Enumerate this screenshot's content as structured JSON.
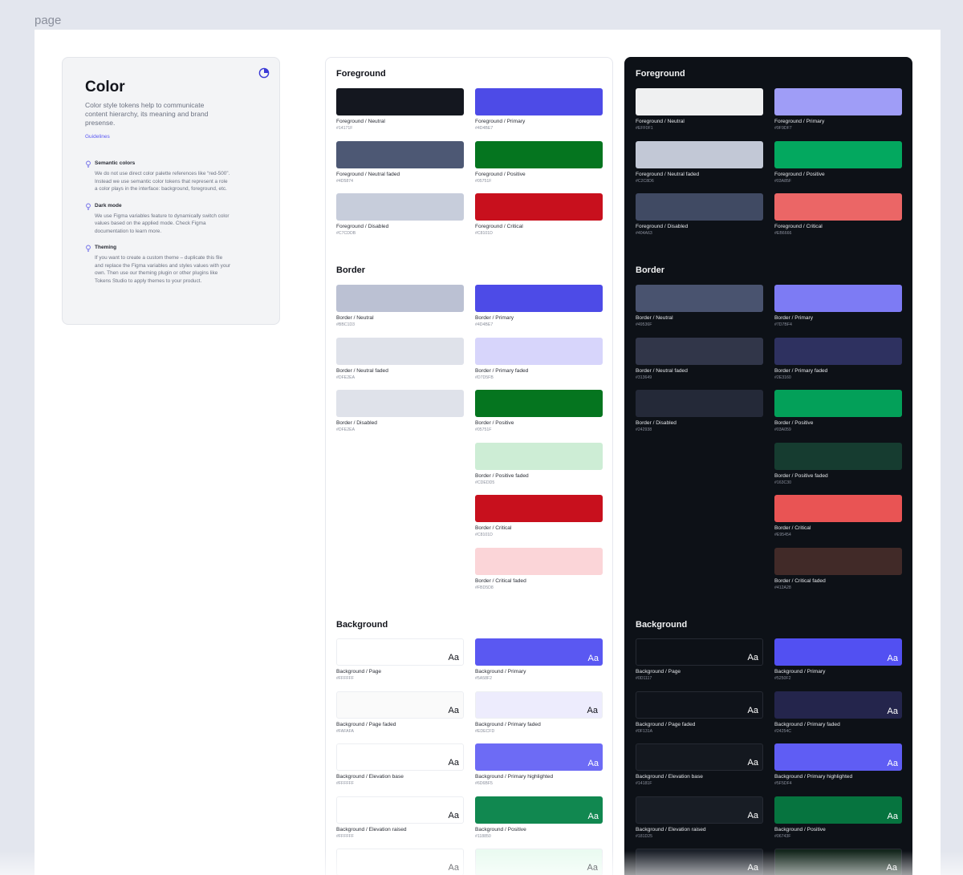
{
  "page_label": "page",
  "intro": {
    "title": "Color",
    "description": "Color style tokens help to communicate content hierarchy, its meaning and brand presense.",
    "link": "Guidelines",
    "notes": [
      {
        "title": "Semantic colors",
        "text": "We do not use direct color palette references like “red-500”. Instead we use semantic color tokens that represent a role a color plays in the interface: background, foreground, etc."
      },
      {
        "title": "Dark mode",
        "text": "We use Figma variables feature to dynamically switch color values based on the applied mode. Check Figma documentation to learn more."
      },
      {
        "title": "Theming",
        "text": "If you want to create a custom theme – duplicate this file and replace the Figma variables and styles values with your own. Then use our theming plugin or other plugins like Tokens Studio to apply themes to your product."
      }
    ]
  },
  "colors": {
    "accent": "#5A58F2",
    "panel_light": "#FFFFFF",
    "panel_dark": "#0D1117"
  },
  "panels": {
    "light": {
      "foreground": {
        "title": "Foreground",
        "left": [
          {
            "name": "Foreground / Neutral",
            "hex": "#14171F"
          },
          {
            "name": "Foreground / Neutral faded",
            "hex": "#4D5874"
          },
          {
            "name": "Foreground / Disabled",
            "hex": "#C7CDDB"
          }
        ],
        "right": [
          {
            "name": "Foreground / Primary",
            "hex": "#4D4BE7"
          },
          {
            "name": "Foreground / Positive",
            "hex": "#05751F"
          },
          {
            "name": "Foreground / Critical",
            "hex": "#C8101D"
          }
        ]
      },
      "border": {
        "title": "Border",
        "left": [
          {
            "name": "Border / Neutral",
            "hex": "#BBC1D3"
          },
          {
            "name": "Border / Neutral faded",
            "hex": "#DFE2EA"
          },
          {
            "name": "Border / Disabled",
            "hex": "#DFE2EA"
          }
        ],
        "right": [
          {
            "name": "Border / Primary",
            "hex": "#4D4BE7"
          },
          {
            "name": "Border / Primary faded",
            "hex": "#D7D5FB"
          },
          {
            "name": "Border / Positive",
            "hex": "#05751F"
          },
          {
            "name": "Border / Positive faded",
            "hex": "#CDEDD5"
          },
          {
            "name": "Border / Critical",
            "hex": "#C8101D"
          },
          {
            "name": "Border / Critical faded",
            "hex": "#FBD5D8"
          }
        ]
      },
      "background": {
        "title": "Background",
        "sample": "Aa",
        "left": [
          {
            "name": "Background / Page",
            "hex": "#FFFFFF"
          },
          {
            "name": "Background / Page faded",
            "hex": "#FAFAFA"
          },
          {
            "name": "Background / Elevation base",
            "hex": "#FFFFFF"
          },
          {
            "name": "Background / Elevation raised",
            "hex": "#FFFFFF"
          },
          {
            "name": "",
            "hex": "#FFFFFF"
          }
        ],
        "right": [
          {
            "name": "Background / Primary",
            "hex": "#5A58F2"
          },
          {
            "name": "Background / Primary faded",
            "hex": "#EDECFD"
          },
          {
            "name": "Background / Primary highlighted",
            "hex": "#6D6BF5"
          },
          {
            "name": "Background / Positive",
            "hex": "#118850"
          },
          {
            "name": "",
            "hex": "#EAFBF1"
          }
        ]
      }
    },
    "dark": {
      "foreground": {
        "title": "Foreground",
        "left": [
          {
            "name": "Foreground / Neutral",
            "hex": "#EFF0F1"
          },
          {
            "name": "Foreground / Neutral faded",
            "hex": "#C2C8D6"
          },
          {
            "name": "Foreground / Disabled",
            "hex": "#404A63"
          }
        ],
        "right": [
          {
            "name": "Foreground / Primary",
            "hex": "#9F9DF7"
          },
          {
            "name": "Foreground / Positive",
            "hex": "#03A85F"
          },
          {
            "name": "Foreground / Critical",
            "hex": "#EB6666"
          }
        ]
      },
      "border": {
        "title": "Border",
        "left": [
          {
            "name": "Border / Neutral",
            "hex": "#49536F"
          },
          {
            "name": "Border / Neutral faded",
            "hex": "#313649"
          },
          {
            "name": "Border / Disabled",
            "hex": "#242938"
          }
        ],
        "right": [
          {
            "name": "Border / Primary",
            "hex": "#7D7BF4"
          },
          {
            "name": "Border / Primary faded",
            "hex": "#2E3160"
          },
          {
            "name": "Border / Positive",
            "hex": "#03A059"
          },
          {
            "name": "Border / Positive faded",
            "hex": "#163C30"
          },
          {
            "name": "Border / Critical",
            "hex": "#E95454"
          },
          {
            "name": "Border / Critical faded",
            "hex": "#412A28"
          }
        ]
      },
      "background": {
        "title": "Background",
        "sample": "Aa",
        "left": [
          {
            "name": "Background / Page",
            "hex": "#0D1117"
          },
          {
            "name": "Background / Page faded",
            "hex": "#0F131A"
          },
          {
            "name": "Background / Elevation base",
            "hex": "#14181F"
          },
          {
            "name": "Background / Elevation raised",
            "hex": "#181D25"
          },
          {
            "name": "",
            "hex": "#1B2029"
          }
        ],
        "right": [
          {
            "name": "Background / Primary",
            "hex": "#5250F2"
          },
          {
            "name": "Background / Primary faded",
            "hex": "#24254C"
          },
          {
            "name": "Background / Primary highlighted",
            "hex": "#5F5DF4"
          },
          {
            "name": "Background / Positive",
            "hex": "#06743F"
          },
          {
            "name": "",
            "hex": "#13261C"
          }
        ]
      }
    }
  }
}
